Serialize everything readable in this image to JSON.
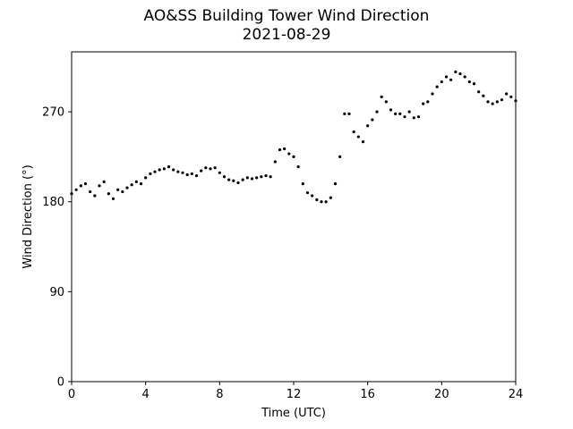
{
  "chart_data": {
    "type": "scatter",
    "title": "AO&SS Building Tower Wind Direction",
    "subtitle": "2021-08-29",
    "xlabel": "Time (UTC)",
    "ylabel": "Wind Direction (°)",
    "xlim": [
      0,
      24
    ],
    "ylim": [
      0,
      330
    ],
    "x_ticks": [
      0,
      4,
      8,
      12,
      16,
      20,
      24
    ],
    "y_ticks": [
      0,
      90,
      180,
      270
    ],
    "grid": false,
    "marker_color": "#000000",
    "series": [
      {
        "x": [
          0.0,
          0.25,
          0.5,
          0.75,
          1.0,
          1.25,
          1.5,
          1.75,
          2.0,
          2.25,
          2.5,
          2.75,
          3.0,
          3.25,
          3.5,
          3.75,
          4.0,
          4.25,
          4.5,
          4.75,
          5.0,
          5.25,
          5.5,
          5.75,
          6.0,
          6.25,
          6.5,
          6.75,
          7.0,
          7.25,
          7.5,
          7.75,
          8.0,
          8.25,
          8.5,
          8.75,
          9.0,
          9.25,
          9.5,
          9.75,
          10.0,
          10.25,
          10.5,
          10.75,
          11.0,
          11.25,
          11.5,
          11.75,
          12.0,
          12.25,
          12.5,
          12.75,
          13.0,
          13.25,
          13.5,
          13.75,
          14.0,
          14.25,
          14.5,
          14.75,
          15.0,
          15.25,
          15.5,
          15.75,
          16.0,
          16.25,
          16.5,
          16.75,
          17.0,
          17.25,
          17.5,
          17.75,
          18.0,
          18.25,
          18.5,
          18.75,
          19.0,
          19.25,
          19.5,
          19.75,
          20.0,
          20.25,
          20.5,
          20.75,
          21.0,
          21.25,
          21.5,
          21.75,
          22.0,
          22.25,
          22.5,
          22.75,
          23.0,
          23.25,
          23.5,
          23.75,
          24.0
        ],
        "y": [
          188,
          192,
          196,
          198,
          190,
          186,
          196,
          200,
          188,
          183,
          192,
          190,
          194,
          197,
          200,
          198,
          204,
          208,
          210,
          212,
          213,
          215,
          212,
          210,
          209,
          207,
          208,
          206,
          211,
          214,
          213,
          214,
          209,
          205,
          202,
          201,
          199,
          202,
          204,
          203,
          204,
          205,
          206,
          205,
          220,
          232,
          233,
          228,
          225,
          215,
          198,
          189,
          186,
          182,
          180,
          180,
          184,
          198,
          225,
          268,
          268,
          250,
          245,
          240,
          256,
          262,
          270,
          285,
          280,
          272,
          268,
          268,
          265,
          270,
          264,
          265,
          278,
          280,
          288,
          295,
          300,
          305,
          302,
          310,
          308,
          305,
          300,
          298,
          290,
          286,
          280,
          278,
          280,
          282,
          288,
          285,
          281
        ]
      }
    ]
  }
}
